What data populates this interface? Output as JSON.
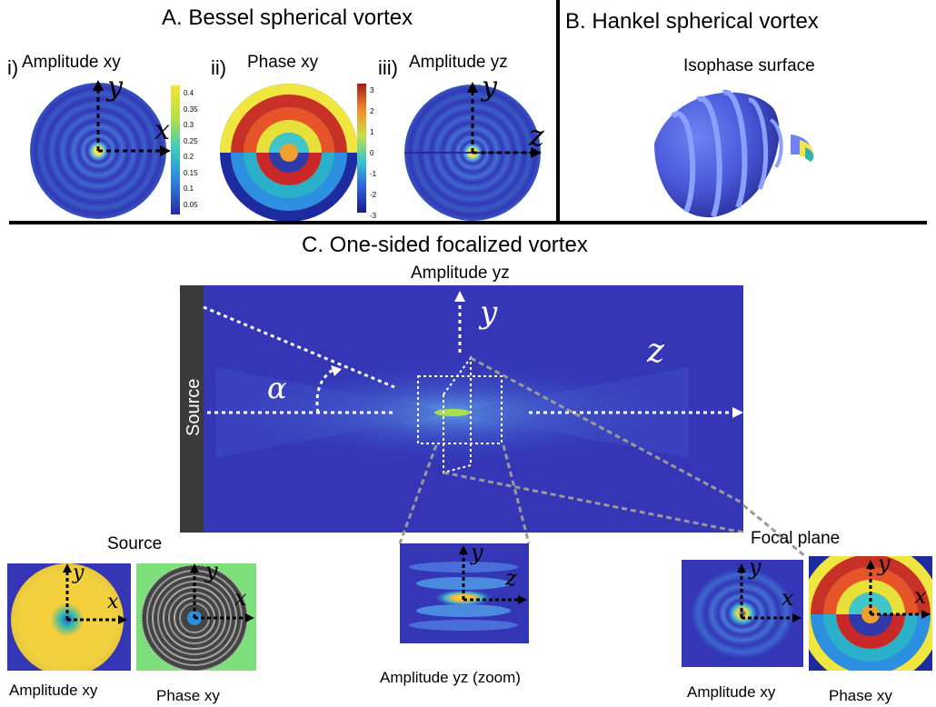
{
  "panel_a": {
    "title": "A. Bessel spherical vortex",
    "subplots": [
      {
        "roman": "i)",
        "label": "Amplitude xy",
        "axis_x": "x",
        "axis_y": "y",
        "colorbar_ticks": [
          "0.4",
          "0.35",
          "0.3",
          "0.25",
          "0.2",
          "0.15",
          "0.1",
          "0.05"
        ]
      },
      {
        "roman": "ii)",
        "label": "Phase xy",
        "colorbar_ticks": [
          "3",
          "2",
          "1",
          "0",
          "-1",
          "-2",
          "-3"
        ]
      },
      {
        "roman": "iii)",
        "label": "Amplitude yz",
        "axis_y": "y",
        "axis_z": "z"
      }
    ]
  },
  "panel_b": {
    "title": "B. Hankel spherical vortex",
    "label": "Isophase surface"
  },
  "panel_c": {
    "title": "C. One-sided focalized vortex",
    "main_label": "Amplitude yz",
    "source_label": "Source",
    "axis_y": "y",
    "axis_z": "z",
    "angle_symbol": "α",
    "insets": [
      {
        "label": "Amplitude xy",
        "axis_x": "x",
        "axis_y": "y"
      },
      {
        "label": "Phase xy",
        "axis_x": "x",
        "axis_y": "y"
      },
      {
        "label": "Amplitude yz (zoom)",
        "axis_y": "y",
        "axis_z": "z"
      },
      {
        "label": "Amplitude xy",
        "axis_x": "x",
        "axis_y": "y"
      },
      {
        "label": "Phase xy",
        "axis_x": "x",
        "axis_y": "y"
      }
    ],
    "source_group_label": "Source",
    "focal_group_label": "Focal plane"
  },
  "colors": {
    "deep_blue": "#2a2a8f",
    "field_blue": "#3436b6",
    "ring_blue": "#4a6ed8",
    "ring_cyan": "#57b6e8",
    "yellow": "#f6e23a",
    "red": "#d22d1f",
    "green": "#7ee07a"
  }
}
